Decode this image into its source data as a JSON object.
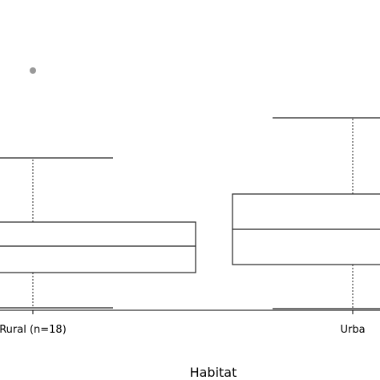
{
  "chart_data": {
    "type": "boxplot",
    "xlabel": "Habitat",
    "ylabel": "",
    "ylim": [
      0,
      300
    ],
    "categories": [
      "Rural (n=18)",
      "Urba"
    ],
    "boxes": [
      {
        "name": "Rural (n=18)",
        "whisker_low": 3,
        "q1": 47,
        "median": 80,
        "q3": 110,
        "whisker_high": 190,
        "outliers": [
          299
        ]
      },
      {
        "name": "Urba",
        "whisker_low": 2,
        "q1": 57,
        "median": 101,
        "q3": 145,
        "whisker_high": 240,
        "outliers": []
      }
    ],
    "colors": {
      "box_line": "#222222",
      "outlier": "#999999"
    }
  }
}
